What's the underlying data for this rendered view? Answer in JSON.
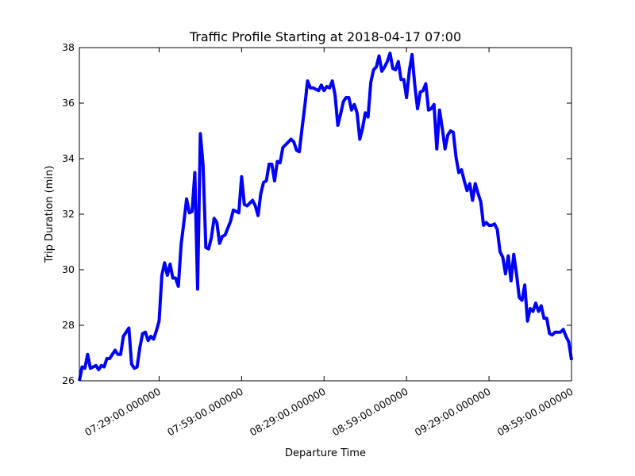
{
  "chart_data": {
    "type": "line",
    "title": "Traffic Profile Starting at 2018-04-17 07:00",
    "xlabel": "Departure Time",
    "ylabel": "Trip Duration (min)",
    "x_start": "07:00",
    "x_step_min": 1,
    "xlim_min": [
      0,
      179
    ],
    "ylim": [
      26,
      38
    ],
    "yticks": [
      26,
      28,
      30,
      32,
      34,
      36,
      38
    ],
    "xticks": [
      {
        "t": 29,
        "label": "07:29:00.000000"
      },
      {
        "t": 59,
        "label": "07:59:00.000000"
      },
      {
        "t": 89,
        "label": "08:29:00.000000"
      },
      {
        "t": 119,
        "label": "08:59:00.000000"
      },
      {
        "t": 149,
        "label": "09:29:00.000000"
      },
      {
        "t": 179,
        "label": "09:59:00.000000"
      }
    ],
    "grid": false,
    "series": [
      {
        "color": "#0000ff",
        "values": [
          26.0,
          26.5,
          26.45,
          26.95,
          26.45,
          26.5,
          26.55,
          26.4,
          26.55,
          26.5,
          26.8,
          26.8,
          26.95,
          27.1,
          26.95,
          26.95,
          27.6,
          27.75,
          27.9,
          26.6,
          26.45,
          26.5,
          27.2,
          27.7,
          27.75,
          27.45,
          27.6,
          27.5,
          27.8,
          28.15,
          29.8,
          30.25,
          29.8,
          30.2,
          29.7,
          29.7,
          29.4,
          30.9,
          31.7,
          32.55,
          32.05,
          32.1,
          33.5,
          29.3,
          34.9,
          33.75,
          30.8,
          30.75,
          31.15,
          31.85,
          31.7,
          30.95,
          31.2,
          31.25,
          31.5,
          31.75,
          32.15,
          32.1,
          32.05,
          33.35,
          32.35,
          32.3,
          32.4,
          32.5,
          32.3,
          31.95,
          32.75,
          33.15,
          33.2,
          33.8,
          33.8,
          33.2,
          33.9,
          33.85,
          34.4,
          34.5,
          34.6,
          34.7,
          34.6,
          34.3,
          34.25,
          35.1,
          35.9,
          36.8,
          36.55,
          36.55,
          36.5,
          36.45,
          36.65,
          36.45,
          36.6,
          36.55,
          36.8,
          36.3,
          35.2,
          35.6,
          36.05,
          36.2,
          36.2,
          35.75,
          35.95,
          35.65,
          34.7,
          35.1,
          35.65,
          35.5,
          36.75,
          37.2,
          37.3,
          37.7,
          37.15,
          37.3,
          37.5,
          37.8,
          37.25,
          37.2,
          37.5,
          36.85,
          36.85,
          36.2,
          37.15,
          37.75,
          36.65,
          35.8,
          36.4,
          36.45,
          36.7,
          35.75,
          35.8,
          35.95,
          34.35,
          35.75,
          35.1,
          34.35,
          34.85,
          35.0,
          34.95,
          34.05,
          33.5,
          33.6,
          33.2,
          32.85,
          33.1,
          32.5,
          33.1,
          32.75,
          32.45,
          31.6,
          31.7,
          31.6,
          31.6,
          31.65,
          31.45,
          30.65,
          30.45,
          29.85,
          30.5,
          29.6,
          30.55,
          29.85,
          29.0,
          28.9,
          29.45,
          28.15,
          28.6,
          28.5,
          28.8,
          28.5,
          28.7,
          28.25,
          28.25,
          27.7,
          27.65,
          27.75,
          27.75,
          27.75,
          27.85,
          27.6,
          27.4,
          26.75
        ]
      }
    ]
  }
}
